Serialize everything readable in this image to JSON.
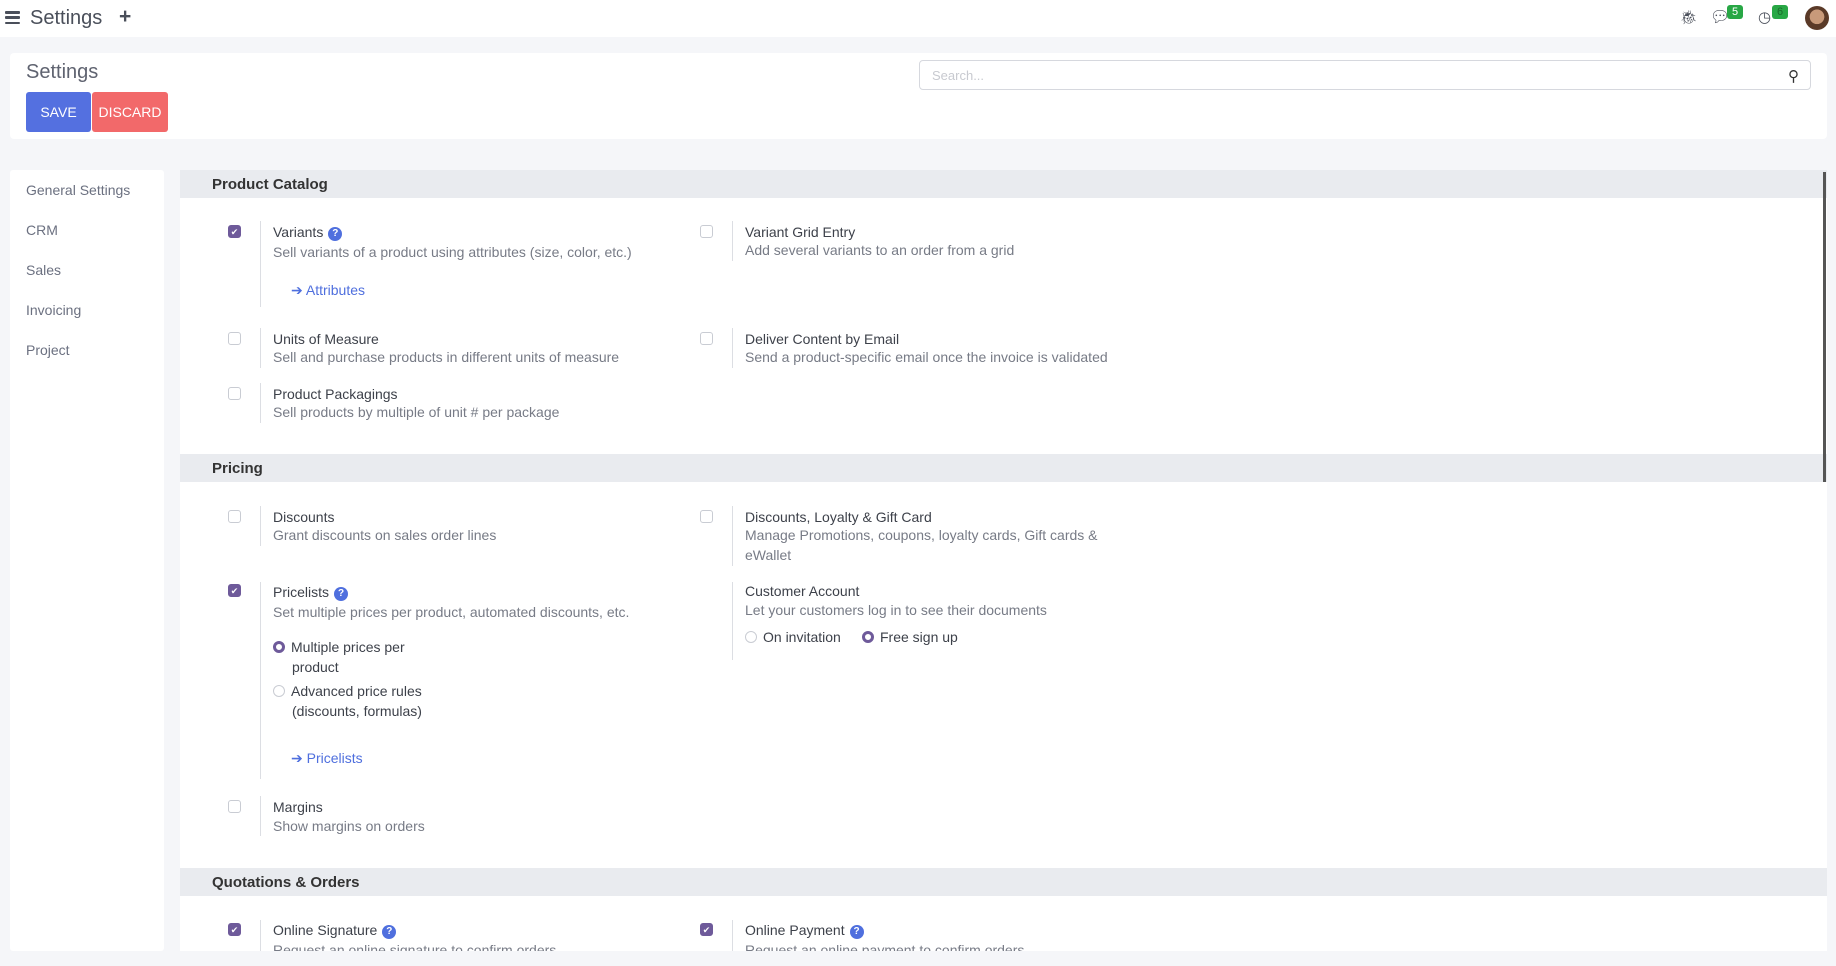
{
  "topbar": {
    "title": "Settings",
    "messages_count": "5",
    "activities_count": "6",
    "icons": [
      "menu-icon",
      "plus-icon",
      "bug-icon",
      "chat-icon",
      "clock-icon",
      "avatar"
    ]
  },
  "header": {
    "title": "Settings",
    "save_label": "SAVE",
    "discard_label": "DISCARD",
    "search_placeholder": "Search..."
  },
  "sidebar": {
    "items": [
      {
        "label": "General Settings"
      },
      {
        "label": "CRM"
      },
      {
        "label": "Sales"
      },
      {
        "label": "Invoicing"
      },
      {
        "label": "Project"
      }
    ]
  },
  "colors": {
    "primary": "#5470e0",
    "danger": "#f2696a",
    "checkbox": "#6e5a9a",
    "badge": "#28a745"
  },
  "sections": {
    "product_catalog": {
      "title": "Product Catalog",
      "variants": {
        "title": "Variants",
        "desc": "Sell variants of a product using attributes (size, color, etc.)",
        "checked": true,
        "link": "Attributes"
      },
      "variant_grid": {
        "title": "Variant Grid Entry",
        "desc": "Add several variants to an order from a grid",
        "checked": false
      },
      "uom": {
        "title": "Units of Measure",
        "desc": "Sell and purchase products in different units of measure",
        "checked": false
      },
      "deliver_email": {
        "title": "Deliver Content by Email",
        "desc": "Send a product-specific email once the invoice is validated",
        "checked": false
      },
      "packagings": {
        "title": "Product Packagings",
        "desc": "Sell products by multiple of unit # per package",
        "checked": false
      }
    },
    "pricing": {
      "title": "Pricing",
      "discounts": {
        "title": "Discounts",
        "desc": "Grant discounts on sales order lines",
        "checked": false
      },
      "loyalty": {
        "title": "Discounts, Loyalty & Gift Card",
        "desc": "Manage Promotions, coupons, loyalty cards, Gift cards & eWallet",
        "checked": false
      },
      "pricelists": {
        "title": "Pricelists",
        "desc": "Set multiple prices per product, automated discounts, etc.",
        "checked": true,
        "options": [
          "Multiple prices per product",
          "Advanced price rules (discounts, formulas)"
        ],
        "selected": "Multiple prices per product",
        "link": "Pricelists"
      },
      "customer_account": {
        "title": "Customer Account",
        "desc": "Let your customers log in to see their documents",
        "options": [
          "On invitation",
          "Free sign up"
        ],
        "selected": "Free sign up"
      },
      "margins": {
        "title": "Margins",
        "desc": "Show margins on orders",
        "checked": false
      }
    },
    "quotations": {
      "title": "Quotations & Orders",
      "online_signature": {
        "title": "Online Signature",
        "desc": "Request an online signature to confirm orders",
        "checked": true
      },
      "online_payment": {
        "title": "Online Payment",
        "desc": "Request an online payment to confirm orders",
        "checked": true
      }
    }
  }
}
